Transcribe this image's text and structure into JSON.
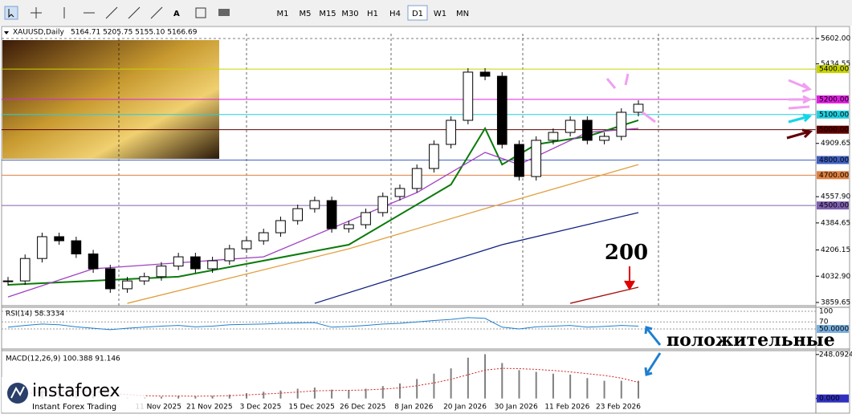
{
  "toolbar": {
    "timeframes": [
      "M1",
      "M5",
      "M15",
      "M30",
      "H1",
      "H4",
      "D1",
      "W1",
      "MN"
    ],
    "active": "D1"
  },
  "chart_data": {
    "type": "candlestick",
    "title": "XAUUSD,Daily",
    "quote": "5164.71 5205.75 5155.10 5166.69",
    "values": [
      4002,
      4150,
      4294,
      4267,
      4180,
      4082,
      3950,
      4002,
      4030,
      4100,
      4161,
      4082,
      4135,
      4214,
      4267,
      4320,
      4400,
      4479,
      4532,
      4347,
      4373,
      4453,
      4559,
      4612,
      4744,
      4903,
      5062,
      5380,
      5353,
      4903,
      4691,
      4930,
      4982,
      5062,
      4930,
      4956,
      5115,
      5168
    ],
    "categories": [
      null,
      null,
      null,
      null,
      null,
      null,
      null,
      null,
      null,
      null,
      "11 Nov 2025",
      null,
      null,
      "21 Nov 2025",
      null,
      null,
      "3 Dec 2025",
      null,
      null,
      "15 Dec 2025",
      null,
      null,
      "26 Dec 2025",
      null,
      null,
      "8 Jan 2026",
      null,
      null,
      "20 Jan 2026",
      null,
      null,
      "30 Jan 2026",
      null,
      null,
      "11 Feb 2026",
      null,
      null,
      "23 Feb 2026"
    ],
    "ylim": [
      3859.65,
      5602
    ],
    "yticks": [
      {
        "value": 5602,
        "label": "5602.00"
      },
      {
        "value": 5434.55,
        "label": "5434.55"
      },
      {
        "value": 4909.65,
        "label": "4909.65"
      },
      {
        "value": 4557.9,
        "label": "4557.90"
      },
      {
        "value": 4384.65,
        "label": "4384.65"
      },
      {
        "value": 4206.15,
        "label": "4206.15"
      },
      {
        "value": 4032.9,
        "label": "4032.90"
      },
      {
        "value": 3859.65,
        "label": "3859.65"
      }
    ],
    "levels": [
      {
        "value": 5400,
        "label": "5400.00",
        "color": "#c8d400"
      },
      {
        "value": 5200,
        "label": "5200.00",
        "color": "#e020e0"
      },
      {
        "value": 5100,
        "label": "5100.00",
        "color": "#20d0e0"
      },
      {
        "value": 5000,
        "label": "5000.00",
        "color": "#600000"
      },
      {
        "value": 4800,
        "label": "4800.00",
        "color": "#4060c0"
      },
      {
        "value": 4700,
        "label": "4700.00",
        "color": "#e08040"
      },
      {
        "value": 4500,
        "label": "4500.00",
        "color": "#8060b0"
      }
    ],
    "lines": [
      {
        "color": "#0a7a0a",
        "x": [
          0,
          10,
          20,
          26,
          28,
          29,
          31,
          34,
          37
        ],
        "values": [
          3976,
          4030,
          4241,
          4638,
          5009,
          4770,
          4903,
          4956,
          5062
        ]
      },
      {
        "color": "#a040c0",
        "x": [
          0,
          5,
          15,
          24,
          28,
          30,
          34,
          37
        ],
        "values": [
          3896,
          4082,
          4161,
          4585,
          4850,
          4770,
          4982,
          5009
        ]
      },
      {
        "color": "#e0a040",
        "x": [
          7,
          20,
          28,
          37
        ],
        "values": [
          3854,
          4214,
          4479,
          4770
        ]
      },
      {
        "color": "#102080",
        "x": [
          18,
          29,
          37
        ],
        "values": [
          3854,
          4241,
          4453
        ]
      },
      {
        "color": "#a01010",
        "x": [
          33,
          37
        ],
        "values": [
          3854,
          3960
        ]
      }
    ],
    "annotations": [
      {
        "text": "200",
        "color": "#e00000"
      },
      {
        "text": "положительные",
        "color": "#1e7fd0"
      }
    ]
  },
  "rsi": {
    "label": "RSI(14) 58.3334",
    "ylim": [
      0,
      100
    ],
    "yticks": [
      100,
      70,
      {
        "value": 50,
        "label": "50.0000"
      }
    ],
    "values": [
      55,
      60,
      64,
      62,
      56,
      52,
      48,
      52,
      55,
      58,
      60,
      56,
      58,
      62,
      63,
      64,
      66,
      67,
      68,
      55,
      57,
      60,
      64,
      66,
      70,
      74,
      77,
      82,
      80,
      55,
      50,
      56,
      58,
      60,
      55,
      57,
      60,
      58
    ]
  },
  "macd": {
    "label": "MACD(12,26,9) 100.388 91.146",
    "ylim": [
      -15,
      270
    ],
    "yticks": [
      {
        "value": 248.0924,
        "label": "248.0924"
      },
      {
        "value": 0,
        "label": "0.000"
      }
    ],
    "values": [
      20,
      30,
      45,
      50,
      40,
      25,
      10,
      5,
      5,
      10,
      15,
      12,
      15,
      22,
      30,
      38,
      45,
      55,
      62,
      50,
      48,
      55,
      70,
      85,
      110,
      140,
      170,
      230,
      250,
      200,
      160,
      150,
      140,
      135,
      115,
      100,
      100,
      100
    ],
    "signal": [
      25,
      28,
      35,
      42,
      42,
      38,
      30,
      22,
      16,
      14,
      14,
      13,
      14,
      16,
      20,
      25,
      30,
      36,
      43,
      45,
      46,
      48,
      53,
      60,
      72,
      88,
      108,
      134,
      160,
      170,
      168,
      164,
      158,
      150,
      140,
      130,
      115,
      91
    ]
  },
  "logo": {
    "brand": "instaforex",
    "tagline": "Instant Forex Trading"
  }
}
